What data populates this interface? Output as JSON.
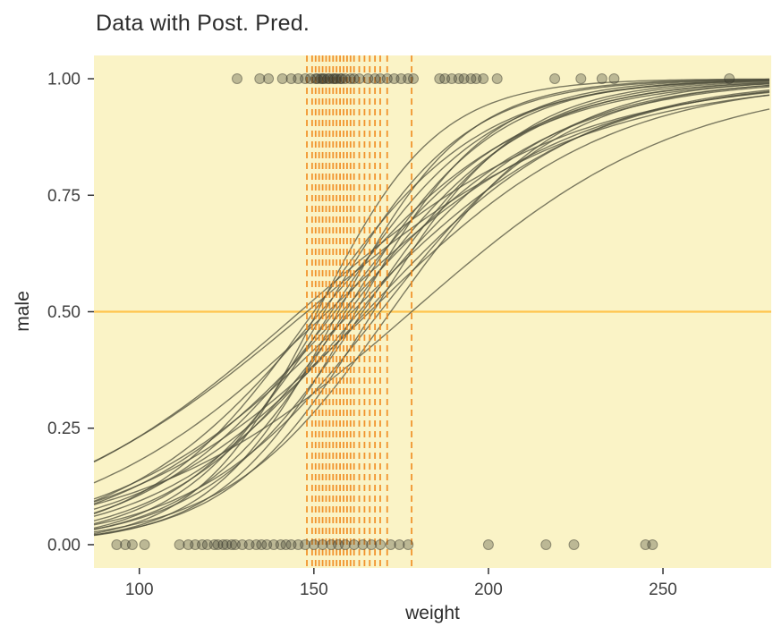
{
  "chart_data": {
    "type": "line+scatter",
    "title": "Data with Post. Pred.",
    "xlabel": "weight",
    "ylabel": "male",
    "xlim": [
      87,
      281
    ],
    "ylim": [
      -0.05,
      1.05
    ],
    "xticks": [
      100,
      150,
      200,
      250
    ],
    "xtick_labels": [
      "100",
      "150",
      "200",
      "250"
    ],
    "yticks": [
      0,
      0.25,
      0.5,
      0.75,
      1
    ],
    "ytick_labels": [
      "0.00",
      "0.25",
      "0.50",
      "0.75",
      "1.00"
    ],
    "panel_bg": "#FAF3C6",
    "grid": false,
    "legend": "none",
    "hline": {
      "y": 0.5,
      "color": "#FFC44D",
      "width": 2.2
    },
    "vlines": {
      "color": "#F08A1D",
      "width": 1.8,
      "dash": [
        7,
        5
      ],
      "xs": [
        148,
        149.5,
        150.5,
        151.5,
        152.5,
        153.5,
        154.5,
        155.5,
        156.5,
        157.5,
        158.5,
        159.5,
        160.5,
        161.5,
        163,
        164.5,
        166,
        167.5,
        169,
        171,
        178
      ]
    },
    "curves": {
      "description": "posterior predictive logistic curves p = 1/(1+exp(-k*(weight-x0)))",
      "color": "#50503E",
      "opacity": 0.75,
      "width": 1.4,
      "sigmoids": [
        {
          "x0": 146,
          "k": 0.026
        },
        {
          "x0": 148,
          "k": 0.025
        },
        {
          "x0": 150,
          "k": 0.042
        },
        {
          "x0": 151,
          "k": 0.058
        },
        {
          "x0": 152,
          "k": 0.035
        },
        {
          "x0": 153,
          "k": 0.05
        },
        {
          "x0": 154,
          "k": 0.028
        },
        {
          "x0": 155,
          "k": 0.045
        },
        {
          "x0": 156,
          "k": 0.038
        },
        {
          "x0": 157,
          "k": 0.055
        },
        {
          "x0": 158,
          "k": 0.033
        },
        {
          "x0": 159,
          "k": 0.047
        },
        {
          "x0": 160,
          "k": 0.04
        },
        {
          "x0": 161,
          "k": 0.03
        },
        {
          "x0": 162,
          "k": 0.052
        },
        {
          "x0": 163,
          "k": 0.036
        },
        {
          "x0": 164,
          "k": 0.044
        },
        {
          "x0": 165,
          "k": 0.032
        },
        {
          "x0": 166,
          "k": 0.029
        },
        {
          "x0": 167,
          "k": 0.048
        },
        {
          "x0": 169,
          "k": 0.038
        },
        {
          "x0": 172,
          "k": 0.042
        },
        {
          "x0": 178,
          "k": 0.026
        }
      ]
    },
    "points": {
      "color": "#3A3A2E",
      "opacity": 0.32,
      "radius": 5.5,
      "male1_weights": [
        128,
        134.5,
        137,
        141,
        143.5,
        145.5,
        147.5,
        149,
        150.5,
        151,
        152,
        152.5,
        153,
        154,
        154.5,
        155.5,
        156,
        156.5,
        157.5,
        158,
        159,
        160.5,
        161.5,
        163,
        165.5,
        167.5,
        169,
        171,
        173,
        175,
        177,
        178.5,
        186,
        187.5,
        189.5,
        191.5,
        193,
        195,
        196.5,
        198.5,
        202.5,
        219,
        226.5,
        232.5,
        236,
        269
      ],
      "male0_weights": [
        93.5,
        96,
        98,
        101.5,
        111.5,
        114,
        116,
        118,
        119.5,
        121.5,
        122.5,
        124,
        125,
        126.5,
        127.5,
        129.5,
        131.5,
        133.5,
        135,
        136.5,
        138.5,
        140.5,
        142,
        143.5,
        145.5,
        147.5,
        150,
        152.5,
        155,
        157,
        159,
        161.5,
        164,
        166.5,
        169,
        172,
        174.5,
        177,
        200,
        216.5,
        224.5,
        245,
        247
      ]
    }
  }
}
